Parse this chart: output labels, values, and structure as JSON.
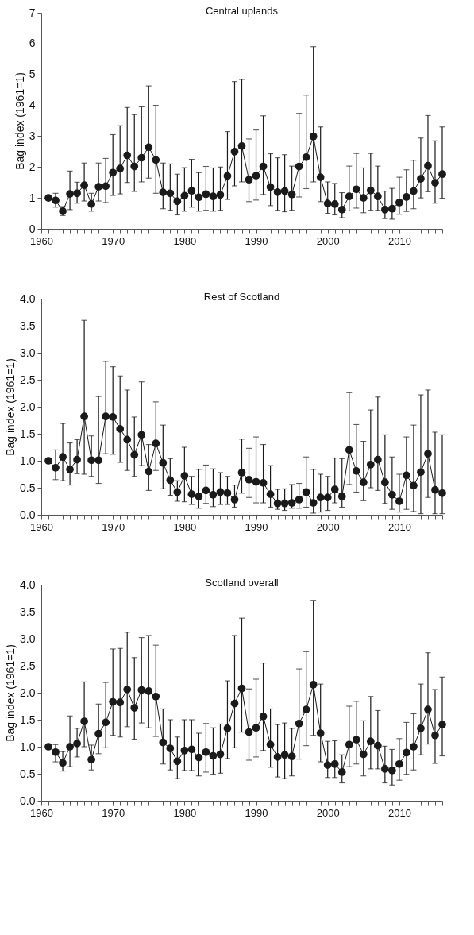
{
  "chart_data": [
    {
      "type": "line",
      "title": "Central uplands",
      "ylabel": "Bag index (1961=1)",
      "color": "#1a1a1a",
      "marker": "circle",
      "line_style": "solid",
      "grid": false,
      "x": [
        1961,
        1962,
        1963,
        1964,
        1965,
        1966,
        1967,
        1968,
        1969,
        1970,
        1971,
        1972,
        1973,
        1974,
        1975,
        1976,
        1977,
        1978,
        1979,
        1980,
        1981,
        1982,
        1983,
        1984,
        1985,
        1986,
        1987,
        1988,
        1989,
        1990,
        1991,
        1992,
        1993,
        1994,
        1995,
        1996,
        1997,
        1998,
        1999,
        2000,
        2001,
        2002,
        2003,
        2004,
        2005,
        2006,
        2007,
        2008,
        2009,
        2010,
        2011,
        2012,
        2013,
        2014,
        2015,
        2016
      ],
      "values": [
        1.0,
        0.92,
        0.57,
        1.13,
        1.15,
        1.41,
        0.8,
        1.36,
        1.38,
        1.82,
        1.95,
        2.38,
        2.02,
        2.3,
        2.64,
        2.23,
        1.18,
        1.15,
        0.89,
        1.07,
        1.23,
        1.02,
        1.12,
        1.05,
        1.1,
        1.71,
        2.5,
        2.68,
        1.59,
        1.72,
        2.02,
        1.35,
        1.19,
        1.22,
        1.11,
        2.02,
        2.32,
        2.99,
        1.67,
        0.82,
        0.8,
        0.62,
        1.05,
        1.28,
        1.0,
        1.24,
        1.05,
        0.62,
        0.65,
        0.85,
        1.03,
        1.22,
        1.62,
        2.04,
        1.49,
        1.77
      ],
      "errors": [
        null,
        [
          0.7,
          1.15
        ],
        [
          0.43,
          0.72
        ],
        [
          0.62,
          1.87
        ],
        [
          0.83,
          1.51
        ],
        [
          0.9,
          2.13
        ],
        [
          0.57,
          1.15
        ],
        [
          0.9,
          2.13
        ],
        [
          0.85,
          2.28
        ],
        [
          1.08,
          3.05
        ],
        [
          1.13,
          3.34
        ],
        [
          1.5,
          3.93
        ],
        [
          1.21,
          3.7
        ],
        [
          1.52,
          3.95
        ],
        [
          1.64,
          4.63
        ],
        [
          1.15,
          4.0
        ],
        [
          0.65,
          2.13
        ],
        [
          0.6,
          2.1
        ],
        [
          0.45,
          1.77
        ],
        [
          0.57,
          1.98
        ],
        [
          0.7,
          2.25
        ],
        [
          0.57,
          1.82
        ],
        [
          0.6,
          2.02
        ],
        [
          0.57,
          1.97
        ],
        [
          0.6,
          2.0
        ],
        [
          0.95,
          3.15
        ],
        [
          1.39,
          4.77
        ],
        [
          1.52,
          4.84
        ],
        [
          0.88,
          2.91
        ],
        [
          0.93,
          3.2
        ],
        [
          1.11,
          3.66
        ],
        [
          0.75,
          2.43
        ],
        [
          0.6,
          2.3
        ],
        [
          0.55,
          2.4
        ],
        [
          0.6,
          2.03
        ],
        [
          1.03,
          3.74
        ],
        [
          1.3,
          4.33
        ],
        [
          1.52,
          5.9
        ],
        [
          0.88,
          3.3
        ],
        [
          0.5,
          1.52
        ],
        [
          0.45,
          1.47
        ],
        [
          0.36,
          1.17
        ],
        [
          0.58,
          2.03
        ],
        [
          0.67,
          2.44
        ],
        [
          0.52,
          1.97
        ],
        [
          0.6,
          2.44
        ],
        [
          0.6,
          2.03
        ],
        [
          0.33,
          1.22
        ],
        [
          0.31,
          1.31
        ],
        [
          0.47,
          1.67
        ],
        [
          0.56,
          1.91
        ],
        [
          0.65,
          2.22
        ],
        [
          1.0,
          2.94
        ],
        [
          1.2,
          3.67
        ],
        [
          0.83,
          2.85
        ],
        [
          0.99,
          3.3
        ]
      ],
      "xlim": [
        1960,
        2016
      ],
      "xticks": [
        1960,
        {
          "value": 1961,
          "label": null
        },
        {
          "value": 1962,
          "label": null
        },
        {
          "value": 1963,
          "label": null
        },
        {
          "value": 1964,
          "label": null
        },
        {
          "value": 1965,
          "label": null
        },
        {
          "value": 1966,
          "label": null
        },
        {
          "value": 1967,
          "label": null
        },
        {
          "value": 1968,
          "label": null
        },
        {
          "value": 1969,
          "label": null
        },
        1970,
        {
          "value": 1971,
          "label": null
        },
        {
          "value": 1972,
          "label": null
        },
        {
          "value": 1973,
          "label": null
        },
        {
          "value": 1974,
          "label": null
        },
        {
          "value": 1975,
          "label": null
        },
        {
          "value": 1976,
          "label": null
        },
        {
          "value": 1977,
          "label": null
        },
        {
          "value": 1978,
          "label": null
        },
        {
          "value": 1979,
          "label": null
        },
        1980,
        {
          "value": 1981,
          "label": null
        },
        {
          "value": 1982,
          "label": null
        },
        {
          "value": 1983,
          "label": null
        },
        {
          "value": 1984,
          "label": null
        },
        {
          "value": 1985,
          "label": null
        },
        {
          "value": 1986,
          "label": null
        },
        {
          "value": 1987,
          "label": null
        },
        {
          "value": 1988,
          "label": null
        },
        {
          "value": 1989,
          "label": null
        },
        1990,
        {
          "value": 1991,
          "label": null
        },
        {
          "value": 1992,
          "label": null
        },
        {
          "value": 1993,
          "label": null
        },
        {
          "value": 1994,
          "label": null
        },
        {
          "value": 1995,
          "label": null
        },
        {
          "value": 1996,
          "label": null
        },
        {
          "value": 1997,
          "label": null
        },
        {
          "value": 1998,
          "label": null
        },
        {
          "value": 1999,
          "label": null
        },
        2000,
        {
          "value": 2001,
          "label": null
        },
        {
          "value": 2002,
          "label": null
        },
        {
          "value": 2003,
          "label": null
        },
        {
          "value": 2004,
          "label": null
        },
        {
          "value": 2005,
          "label": null
        },
        {
          "value": 2006,
          "label": null
        },
        {
          "value": 2007,
          "label": null
        },
        {
          "value": 2008,
          "label": null
        },
        {
          "value": 2009,
          "label": null
        },
        2010,
        {
          "value": 2011,
          "label": null
        },
        {
          "value": 2012,
          "label": null
        },
        {
          "value": 2013,
          "label": null
        },
        {
          "value": 2014,
          "label": null
        },
        {
          "value": 2015,
          "label": null
        },
        {
          "value": 2016,
          "label": null
        }
      ],
      "ylim": [
        0,
        7
      ],
      "yticks": [
        0,
        1,
        2,
        3,
        4,
        5,
        6,
        7
      ]
    },
    {
      "type": "line",
      "title": "Rest of Scotland",
      "ylabel": "Bag index (1961=1)",
      "color": "#1a1a1a",
      "marker": "circle",
      "line_style": "solid",
      "grid": false,
      "x": [
        1961,
        1962,
        1963,
        1964,
        1965,
        1966,
        1967,
        1968,
        1969,
        1970,
        1971,
        1972,
        1973,
        1974,
        1975,
        1976,
        1977,
        1978,
        1979,
        1980,
        1981,
        1982,
        1983,
        1984,
        1985,
        1986,
        1987,
        1988,
        1989,
        1990,
        1991,
        1992,
        1993,
        1994,
        1995,
        1996,
        1997,
        1998,
        1999,
        2000,
        2001,
        2002,
        2003,
        2004,
        2005,
        2006,
        2007,
        2008,
        2009,
        2010,
        2011,
        2012,
        2013,
        2014,
        2015,
        2016
      ],
      "values": [
        1.0,
        0.87,
        1.07,
        0.84,
        1.02,
        1.82,
        1.01,
        1.01,
        1.82,
        1.81,
        1.59,
        1.39,
        1.11,
        1.48,
        0.8,
        1.32,
        0.96,
        0.64,
        0.42,
        0.72,
        0.38,
        0.34,
        0.45,
        0.37,
        0.42,
        0.4,
        0.28,
        0.78,
        0.65,
        0.61,
        0.59,
        0.38,
        0.21,
        0.21,
        0.22,
        0.28,
        0.42,
        0.22,
        0.32,
        0.32,
        0.47,
        0.34,
        1.2,
        0.81,
        0.6,
        0.93,
        1.02,
        0.6,
        0.37,
        0.25,
        0.73,
        0.54,
        0.79,
        1.13,
        0.46,
        0.4
      ],
      "errors": [
        null,
        [
          0.65,
          1.2
        ],
        [
          0.63,
          1.69
        ],
        [
          0.55,
          1.33
        ],
        [
          0.76,
          1.39
        ],
        [
          0.75,
          3.6
        ],
        [
          0.71,
          1.46
        ],
        [
          0.58,
          2.19
        ],
        [
          1.13,
          2.84
        ],
        [
          1.12,
          2.74
        ],
        [
          0.97,
          2.57
        ],
        [
          0.82,
          2.31
        ],
        [
          0.71,
          1.81
        ],
        [
          0.91,
          2.46
        ],
        [
          0.45,
          1.3
        ],
        [
          0.82,
          2.09
        ],
        [
          0.48,
          1.66
        ],
        [
          0.36,
          1.04
        ],
        [
          0.25,
          0.63
        ],
        [
          0.24,
          1.25
        ],
        [
          0.19,
          0.71
        ],
        [
          0.12,
          0.84
        ],
        [
          0.21,
          0.92
        ],
        [
          0.15,
          0.85
        ],
        [
          0.19,
          0.78
        ],
        [
          0.19,
          0.71
        ],
        [
          0.14,
          0.55
        ],
        [
          0.4,
          1.4
        ],
        [
          0.32,
          1.23
        ],
        [
          0.22,
          1.44
        ],
        [
          0.22,
          1.3
        ],
        [
          0.14,
          0.91
        ],
        [
          0.1,
          0.47
        ],
        [
          0.08,
          0.48
        ],
        [
          0.12,
          0.56
        ],
        [
          0.12,
          0.58
        ],
        [
          0.14,
          1.07
        ],
        [
          0.03,
          0.84
        ],
        [
          0.05,
          0.75
        ],
        [
          0.08,
          0.71
        ],
        [
          0.22,
          1.05
        ],
        [
          0.14,
          1.04
        ],
        [
          0.56,
          2.26
        ],
        [
          0.42,
          1.67
        ],
        [
          0.26,
          1.36
        ],
        [
          0.5,
          1.94
        ],
        [
          0.45,
          2.18
        ],
        [
          0.21,
          1.48
        ],
        [
          0.1,
          1.07
        ],
        [
          0.05,
          0.75
        ],
        [
          0.1,
          1.44
        ],
        [
          0.06,
          1.66
        ],
        [
          0.02,
          2.22
        ],
        [
          0.32,
          2.31
        ],
        [
          0.02,
          1.53
        ],
        [
          0.02,
          1.48
        ]
      ],
      "xlim": [
        1960,
        2016
      ],
      "xticks": [
        1960,
        {
          "value": 1961,
          "label": null
        },
        {
          "value": 1962,
          "label": null
        },
        {
          "value": 1963,
          "label": null
        },
        {
          "value": 1964,
          "label": null
        },
        {
          "value": 1965,
          "label": null
        },
        {
          "value": 1966,
          "label": null
        },
        {
          "value": 1967,
          "label": null
        },
        {
          "value": 1968,
          "label": null
        },
        {
          "value": 1969,
          "label": null
        },
        1970,
        {
          "value": 1971,
          "label": null
        },
        {
          "value": 1972,
          "label": null
        },
        {
          "value": 1973,
          "label": null
        },
        {
          "value": 1974,
          "label": null
        },
        {
          "value": 1975,
          "label": null
        },
        {
          "value": 1976,
          "label": null
        },
        {
          "value": 1977,
          "label": null
        },
        {
          "value": 1978,
          "label": null
        },
        {
          "value": 1979,
          "label": null
        },
        1980,
        {
          "value": 1981,
          "label": null
        },
        {
          "value": 1982,
          "label": null
        },
        {
          "value": 1983,
          "label": null
        },
        {
          "value": 1984,
          "label": null
        },
        {
          "value": 1985,
          "label": null
        },
        {
          "value": 1986,
          "label": null
        },
        {
          "value": 1987,
          "label": null
        },
        {
          "value": 1988,
          "label": null
        },
        {
          "value": 1989,
          "label": null
        },
        1990,
        {
          "value": 1991,
          "label": null
        },
        {
          "value": 1992,
          "label": null
        },
        {
          "value": 1993,
          "label": null
        },
        {
          "value": 1994,
          "label": null
        },
        {
          "value": 1995,
          "label": null
        },
        {
          "value": 1996,
          "label": null
        },
        {
          "value": 1997,
          "label": null
        },
        {
          "value": 1998,
          "label": null
        },
        {
          "value": 1999,
          "label": null
        },
        2000,
        {
          "value": 2001,
          "label": null
        },
        {
          "value": 2002,
          "label": null
        },
        {
          "value": 2003,
          "label": null
        },
        {
          "value": 2004,
          "label": null
        },
        {
          "value": 2005,
          "label": null
        },
        {
          "value": 2006,
          "label": null
        },
        {
          "value": 2007,
          "label": null
        },
        {
          "value": 2008,
          "label": null
        },
        {
          "value": 2009,
          "label": null
        },
        2010,
        {
          "value": 2011,
          "label": null
        },
        {
          "value": 2012,
          "label": null
        },
        {
          "value": 2013,
          "label": null
        },
        {
          "value": 2014,
          "label": null
        },
        {
          "value": 2015,
          "label": null
        },
        {
          "value": 2016,
          "label": null
        }
      ],
      "ylim": [
        0,
        4
      ],
      "yticks": [
        {
          "value": 0,
          "label": "0.0"
        },
        0.5,
        {
          "value": 1,
          "label": "1.0"
        },
        1.5,
        {
          "value": 2,
          "label": "2.0"
        },
        2.5,
        {
          "value": 3,
          "label": "3.0"
        },
        3.5,
        {
          "value": 4,
          "label": "4.0"
        }
      ]
    },
    {
      "type": "line",
      "title": "Scotland overall",
      "ylabel": "Bag index (1961=1)",
      "color": "#1a1a1a",
      "marker": "circle",
      "line_style": "solid",
      "grid": false,
      "x": [
        1961,
        1962,
        1963,
        1964,
        1965,
        1966,
        1967,
        1968,
        1969,
        1970,
        1971,
        1972,
        1973,
        1974,
        1975,
        1976,
        1977,
        1978,
        1979,
        1980,
        1981,
        1982,
        1983,
        1984,
        1985,
        1986,
        1987,
        1988,
        1989,
        1990,
        1991,
        1992,
        1993,
        1994,
        1995,
        1996,
        1997,
        1998,
        1999,
        2000,
        2001,
        2002,
        2003,
        2004,
        2005,
        2006,
        2007,
        2008,
        2009,
        2010,
        2011,
        2012,
        2013,
        2014,
        2015,
        2016
      ],
      "values": [
        1.0,
        0.9,
        0.7,
        1.0,
        1.06,
        1.47,
        0.76,
        1.24,
        1.45,
        1.83,
        1.82,
        2.06,
        1.72,
        2.05,
        2.03,
        1.93,
        1.08,
        0.97,
        0.73,
        0.93,
        0.95,
        0.8,
        0.9,
        0.83,
        0.86,
        1.34,
        1.8,
        2.08,
        1.27,
        1.35,
        1.56,
        1.04,
        0.81,
        0.85,
        0.82,
        1.43,
        1.69,
        2.15,
        1.25,
        0.66,
        0.68,
        0.53,
        1.04,
        1.13,
        0.86,
        1.1,
        1.02,
        0.59,
        0.56,
        0.68,
        0.89,
        1.0,
        1.34,
        1.69,
        1.21,
        1.41
      ],
      "errors": [
        null,
        [
          0.72,
          1.04
        ],
        [
          0.55,
          0.91
        ],
        [
          0.63,
          1.57
        ],
        [
          0.81,
          1.34
        ],
        [
          1.0,
          2.2
        ],
        [
          0.57,
          1.03
        ],
        [
          0.87,
          1.79
        ],
        [
          0.98,
          2.19
        ],
        [
          1.21,
          2.81
        ],
        [
          1.18,
          2.82
        ],
        [
          1.37,
          3.12
        ],
        [
          1.14,
          2.65
        ],
        [
          1.44,
          3.02
        ],
        [
          1.35,
          3.06
        ],
        [
          1.19,
          2.88
        ],
        [
          0.68,
          1.7
        ],
        [
          0.57,
          1.5
        ],
        [
          0.41,
          1.18
        ],
        [
          0.56,
          1.5
        ],
        [
          0.56,
          1.5
        ],
        [
          0.46,
          1.25
        ],
        [
          0.53,
          1.43
        ],
        [
          0.49,
          1.35
        ],
        [
          0.51,
          1.42
        ],
        [
          0.78,
          2.22
        ],
        [
          0.98,
          3.06
        ],
        [
          1.27,
          3.38
        ],
        [
          0.75,
          2.07
        ],
        [
          0.81,
          2.25
        ],
        [
          0.93,
          2.55
        ],
        [
          0.62,
          1.7
        ],
        [
          0.44,
          1.41
        ],
        [
          0.41,
          1.44
        ],
        [
          0.46,
          1.34
        ],
        [
          0.77,
          2.44
        ],
        [
          1.02,
          2.76
        ],
        [
          1.21,
          3.71
        ],
        [
          0.72,
          2.16
        ],
        [
          0.43,
          1.1
        ],
        [
          0.43,
          1.11
        ],
        [
          0.33,
          0.85
        ],
        [
          0.63,
          1.75
        ],
        [
          0.68,
          1.84
        ],
        [
          0.46,
          1.48
        ],
        [
          0.59,
          1.93
        ],
        [
          0.59,
          1.67
        ],
        [
          0.33,
          1.01
        ],
        [
          0.29,
          0.95
        ],
        [
          0.38,
          1.15
        ],
        [
          0.49,
          1.45
        ],
        [
          0.57,
          1.61
        ],
        [
          0.85,
          2.16
        ],
        [
          1.05,
          2.74
        ],
        [
          0.69,
          2.06
        ],
        [
          0.83,
          2.29
        ]
      ],
      "xlim": [
        1960,
        2016
      ],
      "xticks": [
        1960,
        {
          "value": 1961,
          "label": null
        },
        {
          "value": 1962,
          "label": null
        },
        {
          "value": 1963,
          "label": null
        },
        {
          "value": 1964,
          "label": null
        },
        {
          "value": 1965,
          "label": null
        },
        {
          "value": 1966,
          "label": null
        },
        {
          "value": 1967,
          "label": null
        },
        {
          "value": 1968,
          "label": null
        },
        {
          "value": 1969,
          "label": null
        },
        1970,
        {
          "value": 1971,
          "label": null
        },
        {
          "value": 1972,
          "label": null
        },
        {
          "value": 1973,
          "label": null
        },
        {
          "value": 1974,
          "label": null
        },
        {
          "value": 1975,
          "label": null
        },
        {
          "value": 1976,
          "label": null
        },
        {
          "value": 1977,
          "label": null
        },
        {
          "value": 1978,
          "label": null
        },
        {
          "value": 1979,
          "label": null
        },
        1980,
        {
          "value": 1981,
          "label": null
        },
        {
          "value": 1982,
          "label": null
        },
        {
          "value": 1983,
          "label": null
        },
        {
          "value": 1984,
          "label": null
        },
        {
          "value": 1985,
          "label": null
        },
        {
          "value": 1986,
          "label": null
        },
        {
          "value": 1987,
          "label": null
        },
        {
          "value": 1988,
          "label": null
        },
        {
          "value": 1989,
          "label": null
        },
        1990,
        {
          "value": 1991,
          "label": null
        },
        {
          "value": 1992,
          "label": null
        },
        {
          "value": 1993,
          "label": null
        },
        {
          "value": 1994,
          "label": null
        },
        {
          "value": 1995,
          "label": null
        },
        {
          "value": 1996,
          "label": null
        },
        {
          "value": 1997,
          "label": null
        },
        {
          "value": 1998,
          "label": null
        },
        {
          "value": 1999,
          "label": null
        },
        2000,
        {
          "value": 2001,
          "label": null
        },
        {
          "value": 2002,
          "label": null
        },
        {
          "value": 2003,
          "label": null
        },
        {
          "value": 2004,
          "label": null
        },
        {
          "value": 2005,
          "label": null
        },
        {
          "value": 2006,
          "label": null
        },
        {
          "value": 2007,
          "label": null
        },
        {
          "value": 2008,
          "label": null
        },
        {
          "value": 2009,
          "label": null
        },
        2010,
        {
          "value": 2011,
          "label": null
        },
        {
          "value": 2012,
          "label": null
        },
        {
          "value": 2013,
          "label": null
        },
        {
          "value": 2014,
          "label": null
        },
        {
          "value": 2015,
          "label": null
        },
        {
          "value": 2016,
          "label": null
        }
      ],
      "ylim": [
        0,
        4
      ],
      "yticks": [
        {
          "value": 0,
          "label": "0.0"
        },
        0.5,
        {
          "value": 1,
          "label": "1.0"
        },
        1.5,
        {
          "value": 2,
          "label": "2.0"
        },
        2.5,
        {
          "value": 3,
          "label": "3.0"
        },
        3.5,
        {
          "value": 4,
          "label": "4.0"
        }
      ]
    }
  ]
}
